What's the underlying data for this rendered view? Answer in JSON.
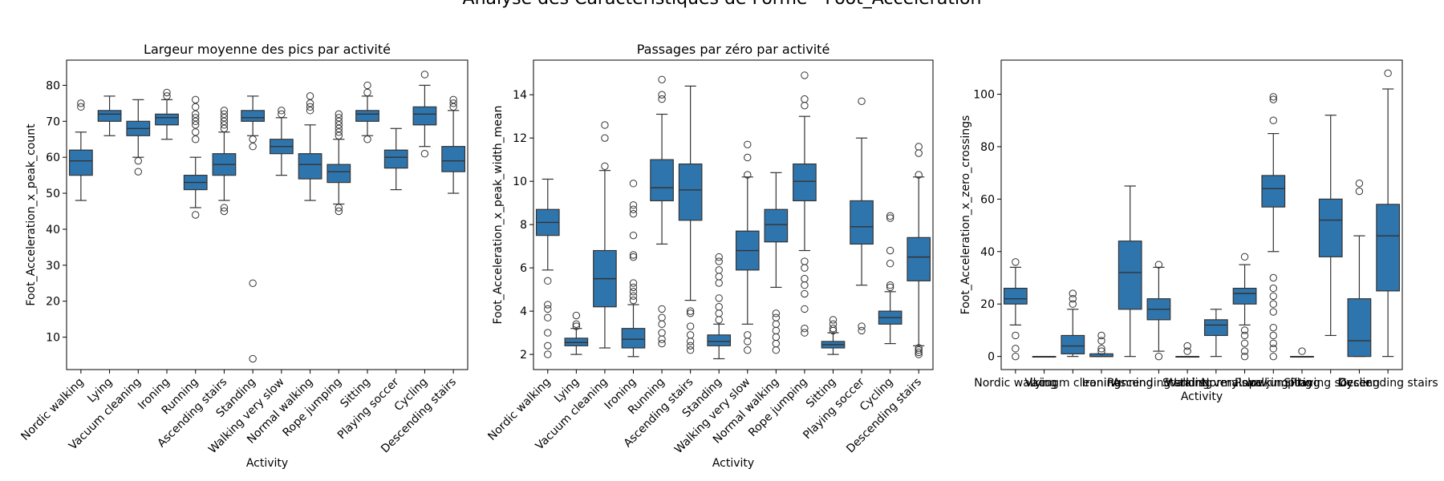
{
  "suptitle": "Analyse des Caractéristiques de Forme - Foot_Acceleration",
  "colors": {
    "box_fill": "#2f75ad",
    "line": "#333333",
    "axes": "#000000",
    "background": "#ffffff"
  },
  "chart_data": [
    {
      "type": "box",
      "title": "Largeur moyenne des pics par activité",
      "xlabel": "Activity",
      "ylabel": "Foot_Acceleration_x_peak_count",
      "ylim": [
        1,
        87
      ],
      "yticks": [
        10,
        20,
        30,
        40,
        50,
        60,
        70,
        80
      ],
      "xtick_rotation": 45,
      "grid": false,
      "categories": [
        "Nordic walking",
        "Lying",
        "Vacuum cleaning",
        "Ironing",
        "Running",
        "Ascending stairs",
        "Standing",
        "Walking very slow",
        "Normal walking",
        "Rope jumping",
        "Sitting",
        "Playing soccer",
        "Cycling",
        "Descending stairs"
      ],
      "boxes": [
        {
          "whislo": 48,
          "q1": 55,
          "med": 59,
          "q3": 62,
          "whishi": 67,
          "fliers": [
            74,
            75
          ]
        },
        {
          "whislo": 66,
          "q1": 70,
          "med": 72,
          "q3": 73,
          "whishi": 77,
          "fliers": []
        },
        {
          "whislo": 60,
          "q1": 66,
          "med": 68,
          "q3": 70,
          "whishi": 76,
          "fliers": [
            56,
            59
          ]
        },
        {
          "whislo": 65,
          "q1": 69,
          "med": 71,
          "q3": 72,
          "whishi": 76,
          "fliers": [
            77,
            78
          ]
        },
        {
          "whislo": 46,
          "q1": 51,
          "med": 53,
          "q3": 55,
          "whishi": 60,
          "fliers": [
            44,
            65,
            67,
            69,
            70,
            71,
            72,
            74,
            76
          ]
        },
        {
          "whislo": 48,
          "q1": 55,
          "med": 58,
          "q3": 61,
          "whishi": 67,
          "fliers": [
            45,
            46,
            68,
            69,
            70,
            71,
            72,
            73
          ]
        },
        {
          "whislo": 66,
          "q1": 70,
          "med": 71,
          "q3": 73,
          "whishi": 77,
          "fliers": [
            4,
            25,
            63,
            65
          ]
        },
        {
          "whislo": 55,
          "q1": 61,
          "med": 63,
          "q3": 65,
          "whishi": 71,
          "fliers": [
            72,
            73
          ]
        },
        {
          "whislo": 48,
          "q1": 54,
          "med": 58,
          "q3": 61,
          "whishi": 69,
          "fliers": [
            73,
            74,
            75,
            77
          ]
        },
        {
          "whislo": 47,
          "q1": 53,
          "med": 56,
          "q3": 58,
          "whishi": 65,
          "fliers": [
            45,
            46,
            66,
            67,
            68,
            69,
            70,
            71,
            72
          ]
        },
        {
          "whislo": 66,
          "q1": 70,
          "med": 72,
          "q3": 73,
          "whishi": 77,
          "fliers": [
            65,
            78,
            80
          ]
        },
        {
          "whislo": 51,
          "q1": 57,
          "med": 60,
          "q3": 62,
          "whishi": 68,
          "fliers": []
        },
        {
          "whislo": 63,
          "q1": 69,
          "med": 72,
          "q3": 74,
          "whishi": 80,
          "fliers": [
            61,
            83
          ]
        },
        {
          "whislo": 50,
          "q1": 56,
          "med": 59,
          "q3": 63,
          "whishi": 73,
          "fliers": [
            74,
            75,
            76
          ]
        }
      ]
    },
    {
      "type": "box",
      "title": "Passages par zéro par activité",
      "xlabel": "Activity",
      "ylabel": "Foot_Acceleration_x_peak_width_mean",
      "ylim": [
        1.3,
        15.6
      ],
      "yticks": [
        2,
        4,
        6,
        8,
        10,
        12,
        14
      ],
      "xtick_rotation": 45,
      "grid": false,
      "categories": [
        "Nordic walking",
        "Lying",
        "Vacuum cleaning",
        "Ironing",
        "Running",
        "Ascending stairs",
        "Standing",
        "Walking very slow",
        "Normal walking",
        "Rope jumping",
        "Sitting",
        "Playing soccer",
        "Cycling",
        "Descending stairs"
      ],
      "boxes": [
        {
          "whislo": 5.9,
          "q1": 7.5,
          "med": 8.1,
          "q3": 8.7,
          "whishi": 10.1,
          "fliers": [
            2.0,
            2.4,
            3.0,
            3.7,
            4.1,
            4.3,
            5.4
          ]
        },
        {
          "whislo": 2.0,
          "q1": 2.4,
          "med": 2.55,
          "q3": 2.75,
          "whishi": 3.2,
          "fliers": [
            3.3,
            3.4,
            3.8
          ]
        },
        {
          "whislo": 2.3,
          "q1": 4.2,
          "med": 5.5,
          "q3": 6.8,
          "whishi": 10.5,
          "fliers": [
            10.7,
            12.0,
            12.6
          ]
        },
        {
          "whislo": 1.9,
          "q1": 2.3,
          "med": 2.7,
          "q3": 3.2,
          "whishi": 4.3,
          "fliers": [
            4.5,
            4.7,
            4.9,
            5.1,
            5.3,
            6.5,
            6.6,
            7.5,
            8.5,
            8.7,
            8.9,
            9.9
          ]
        },
        {
          "whislo": 7.1,
          "q1": 9.1,
          "med": 9.7,
          "q3": 11.0,
          "whishi": 13.1,
          "fliers": [
            2.5,
            2.7,
            3.0,
            3.4,
            3.7,
            4.1,
            13.8,
            14.0,
            14.7
          ]
        },
        {
          "whislo": 4.5,
          "q1": 8.2,
          "med": 9.6,
          "q3": 10.8,
          "whishi": 14.4,
          "fliers": [
            2.2,
            2.4,
            2.6,
            2.9,
            3.3,
            3.9,
            4.0
          ]
        },
        {
          "whislo": 1.8,
          "q1": 2.4,
          "med": 2.6,
          "q3": 2.9,
          "whishi": 3.4,
          "fliers": [
            3.6,
            3.9,
            4.2,
            4.6,
            5.3,
            5.6,
            5.9,
            6.3,
            6.5
          ]
        },
        {
          "whislo": 3.4,
          "q1": 5.9,
          "med": 6.8,
          "q3": 7.7,
          "whishi": 10.2,
          "fliers": [
            2.2,
            2.6,
            2.9,
            10.3,
            11.1,
            11.7
          ]
        },
        {
          "whislo": 5.1,
          "q1": 7.2,
          "med": 8.0,
          "q3": 8.7,
          "whishi": 10.4,
          "fliers": [
            2.2,
            2.5,
            2.8,
            3.1,
            3.4,
            3.7,
            3.9
          ]
        },
        {
          "whislo": 6.8,
          "q1": 9.1,
          "med": 10.0,
          "q3": 10.8,
          "whishi": 13.0,
          "fliers": [
            3.0,
            3.2,
            4.1,
            4.8,
            5.2,
            5.5,
            6.0,
            6.3,
            13.5,
            13.8,
            14.9
          ]
        },
        {
          "whislo": 2.0,
          "q1": 2.3,
          "med": 2.45,
          "q3": 2.6,
          "whishi": 3.0,
          "fliers": [
            3.1,
            3.2,
            3.4,
            3.6
          ]
        },
        {
          "whislo": 5.2,
          "q1": 7.1,
          "med": 7.9,
          "q3": 9.1,
          "whishi": 12.0,
          "fliers": [
            3.1,
            3.3,
            13.7
          ]
        },
        {
          "whislo": 2.5,
          "q1": 3.4,
          "med": 3.7,
          "q3": 4.0,
          "whishi": 4.9,
          "fliers": [
            5.1,
            5.2,
            6.2,
            6.8,
            8.3,
            8.4
          ]
        },
        {
          "whislo": 2.4,
          "q1": 5.4,
          "med": 6.5,
          "q3": 7.4,
          "whishi": 10.2,
          "fliers": [
            2.0,
            2.1,
            2.2,
            2.3,
            10.3,
            11.3,
            11.6
          ]
        }
      ]
    },
    {
      "type": "box",
      "title": "",
      "xlabel": "Activity",
      "ylabel": "Foot_Acceleration_x_zero_crossings",
      "ylim": [
        -5,
        113
      ],
      "yticks": [
        0,
        20,
        40,
        60,
        80,
        100
      ],
      "xtick_rotation": 0,
      "grid": false,
      "categories": [
        "Nordic walking",
        "Lying",
        "Vacuum cleaning",
        "Ironing",
        "Running",
        "Ascending stairs",
        "Standing",
        "Walking very slow",
        "Normal walking",
        "Rope jumping",
        "Sitting",
        "Playing soccer",
        "Cycling",
        "Descending stairs"
      ],
      "boxes": [
        {
          "whislo": 12,
          "q1": 20,
          "med": 22,
          "q3": 26,
          "whishi": 34,
          "fliers": [
            0,
            3,
            8,
            36
          ]
        },
        {
          "whislo": 0,
          "q1": 0,
          "med": 0,
          "q3": 0,
          "whishi": 0,
          "fliers": []
        },
        {
          "whislo": 0,
          "q1": 1,
          "med": 4,
          "q3": 8,
          "whishi": 18,
          "fliers": [
            20,
            22,
            24
          ]
        },
        {
          "whislo": 0,
          "q1": 0,
          "med": 0,
          "q3": 1,
          "whishi": 1,
          "fliers": [
            2,
            3,
            6,
            8
          ]
        },
        {
          "whislo": 0,
          "q1": 18,
          "med": 32,
          "q3": 44,
          "whishi": 65,
          "fliers": []
        },
        {
          "whislo": 2,
          "q1": 14,
          "med": 18,
          "q3": 22,
          "whishi": 34,
          "fliers": [
            0,
            35
          ]
        },
        {
          "whislo": 0,
          "q1": 0,
          "med": 0,
          "q3": 0,
          "whishi": 0,
          "fliers": [
            2,
            4
          ]
        },
        {
          "whislo": 0,
          "q1": 8,
          "med": 12,
          "q3": 14,
          "whishi": 18,
          "fliers": []
        },
        {
          "whislo": 12,
          "q1": 20,
          "med": 24,
          "q3": 26,
          "whishi": 35,
          "fliers": [
            0,
            2,
            5,
            8,
            10,
            38
          ]
        },
        {
          "whislo": 40,
          "q1": 57,
          "med": 64,
          "q3": 69,
          "whishi": 85,
          "fliers": [
            0,
            3,
            5,
            8,
            11,
            17,
            20,
            23,
            26,
            30,
            90,
            98,
            99
          ]
        },
        {
          "whislo": 0,
          "q1": 0,
          "med": 0,
          "q3": 0,
          "whishi": 0,
          "fliers": [
            2
          ]
        },
        {
          "whislo": 8,
          "q1": 38,
          "med": 52,
          "q3": 60,
          "whishi": 92,
          "fliers": []
        },
        {
          "whislo": 0,
          "q1": 0,
          "med": 6,
          "q3": 22,
          "whishi": 46,
          "fliers": [
            63,
            66
          ]
        },
        {
          "whislo": 0,
          "q1": 25,
          "med": 46,
          "q3": 58,
          "whishi": 102,
          "fliers": [
            108
          ]
        }
      ]
    }
  ]
}
